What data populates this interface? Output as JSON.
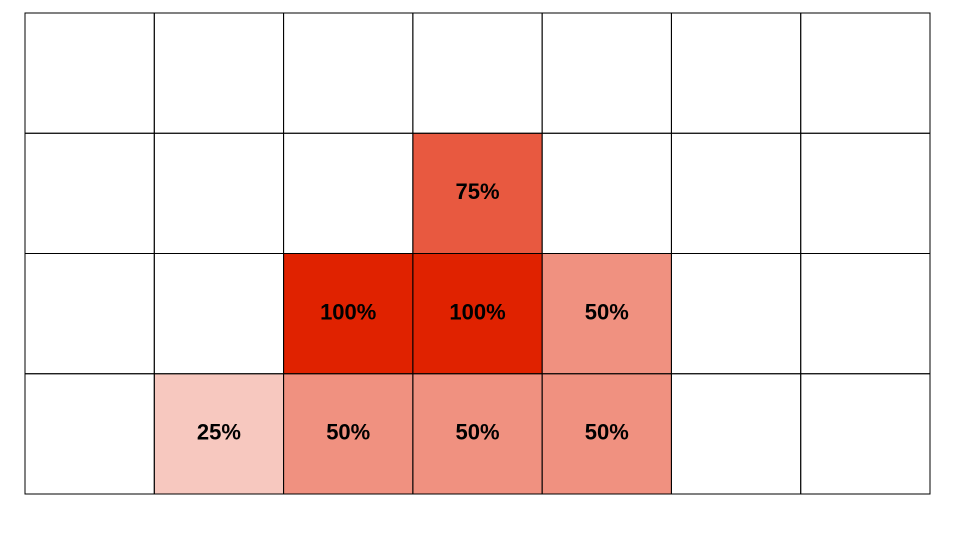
{
  "chart_data": {
    "type": "heatmap",
    "values": [
      [
        null,
        null,
        null,
        null,
        null,
        null,
        null
      ],
      [
        null,
        null,
        null,
        75,
        null,
        null,
        null
      ],
      [
        null,
        null,
        100,
        100,
        50,
        null,
        null
      ],
      [
        null,
        25,
        50,
        50,
        50,
        null,
        null
      ]
    ],
    "value_labels": [
      [
        null,
        null,
        null,
        null,
        null,
        null,
        null
      ],
      [
        null,
        null,
        null,
        "75%",
        null,
        null,
        null
      ],
      [
        null,
        null,
        "100%",
        "100%",
        "50%",
        null,
        null
      ],
      [
        null,
        "25%",
        "50%",
        "50%",
        "50%",
        null,
        null
      ]
    ],
    "color": "#e02200",
    "colorlim": [
      0,
      100
    ]
  }
}
